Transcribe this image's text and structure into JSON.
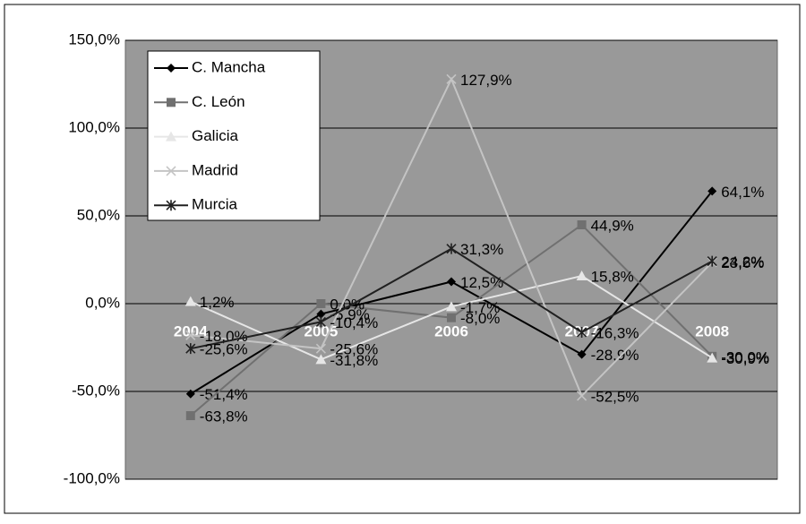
{
  "chart_data": {
    "type": "line",
    "categories": [
      "2004",
      "2005",
      "2006",
      "2007",
      "2008"
    ],
    "series": [
      {
        "name": "C. Mancha",
        "color": "#000000",
        "marker": "diamond",
        "values": [
          -51.4,
          -5.9,
          12.5,
          -28.9,
          64.1
        ],
        "value_labels": [
          "-51,4%",
          "-5,9%",
          "12,5%",
          "-28,9%",
          "64,1%"
        ]
      },
      {
        "name": "C. León",
        "color": "#707070",
        "marker": "square",
        "values": [
          -63.8,
          0.0,
          -8.0,
          44.9,
          -30.0
        ],
        "value_labels": [
          "-63,8%",
          "0,0%",
          "-8,0%",
          "44,9%",
          "-30,0%"
        ]
      },
      {
        "name": "Galicia",
        "color": "#e6e6e6",
        "marker": "triangle",
        "values": [
          1.2,
          -31.8,
          -1.7,
          15.8,
          -30.9
        ],
        "value_labels": [
          "1,2%",
          "-31,8%",
          "-1,7%",
          "15,8%",
          "-30,9%"
        ]
      },
      {
        "name": "Madrid",
        "color": "#c4c4c4",
        "marker": "x",
        "values": [
          -18.0,
          -25.6,
          127.9,
          -52.5,
          23.6
        ],
        "value_labels": [
          "-18,0%",
          "-25,6%",
          "127,9%",
          "-52,5%",
          "23,6%"
        ]
      },
      {
        "name": "Murcia",
        "color": "#202020",
        "marker": "star",
        "values": [
          -25.6,
          -10.4,
          31.3,
          -16.3,
          24.2
        ],
        "value_labels": [
          "-25,6%",
          "-10,4%",
          "31,3%",
          "-16,3%",
          "24,2%"
        ]
      }
    ],
    "ylim": [
      -100,
      150
    ],
    "yticks": [
      {
        "value": -100,
        "label": "-100,0%"
      },
      {
        "value": -50,
        "label": "-50,0%"
      },
      {
        "value": 0,
        "label": "0,0%"
      },
      {
        "value": 50,
        "label": "50,0%"
      },
      {
        "value": 100,
        "label": "100,0%"
      },
      {
        "value": 150,
        "label": "150,0%"
      }
    ],
    "grid": true,
    "legend": "upper left"
  }
}
